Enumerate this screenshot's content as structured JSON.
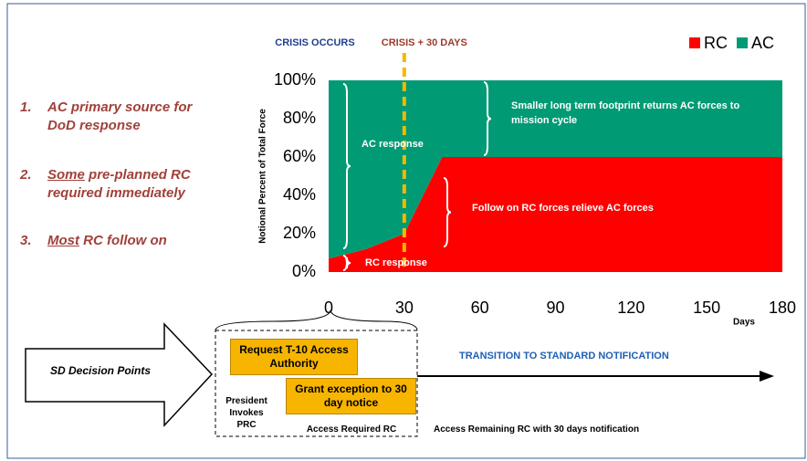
{
  "chart_data": {
    "type": "area",
    "stacked": true,
    "x": [
      0,
      15,
      30,
      45,
      180
    ],
    "series": [
      {
        "name": "RC",
        "color": "#ff0000",
        "values": [
          7,
          12,
          20,
          60,
          60
        ]
      },
      {
        "name": "AC",
        "color": "#009a74",
        "values": [
          93,
          88,
          80,
          40,
          40
        ]
      }
    ],
    "xlim": [
      0,
      180
    ],
    "xticks": [
      0,
      30,
      60,
      90,
      120,
      150,
      180
    ],
    "ylim": [
      0,
      100
    ],
    "yticks": [
      {
        "value": 0,
        "label": "0%"
      },
      {
        "value": 20,
        "label": "20%"
      },
      {
        "value": 40,
        "label": "40%"
      },
      {
        "value": 60,
        "label": "60%"
      },
      {
        "value": 80,
        "label": "80%"
      },
      {
        "value": 100,
        "label": "100%"
      }
    ],
    "xlabel": "Days",
    "ylabel": "Notional Percent of Total Force",
    "legend": "top-right",
    "events": [
      {
        "label": "CRISIS OCCURS",
        "x": 0,
        "color": "#1f3f8f"
      },
      {
        "label": "CRISIS + 30 DAYS",
        "x": 30,
        "color": "#9b3b2a"
      }
    ],
    "annotations": [
      "AC response",
      "Smaller long term footprint returns AC forces to mission cycle",
      "Follow on RC forces relieve AC forces",
      "RC response"
    ]
  },
  "points": [
    {
      "number": "1.",
      "text": "AC primary source for DoD response"
    },
    {
      "number": "2.",
      "emphasis": "Some",
      "text": "pre-planned RC required immediately"
    },
    {
      "number": "3.",
      "emphasis": "Most",
      "text": "RC follow on"
    }
  ],
  "decision": {
    "label": "SD Decision Points",
    "steps": [
      "Request T-10 Access Authority",
      "Grant exception to 30 day notice"
    ],
    "president": "President Invokes PRC",
    "required": "Access Required RC",
    "transition": "TRANSITION TO STANDARD NOTIFICATION",
    "remaining": "Access Remaining RC with 30 days notification"
  }
}
